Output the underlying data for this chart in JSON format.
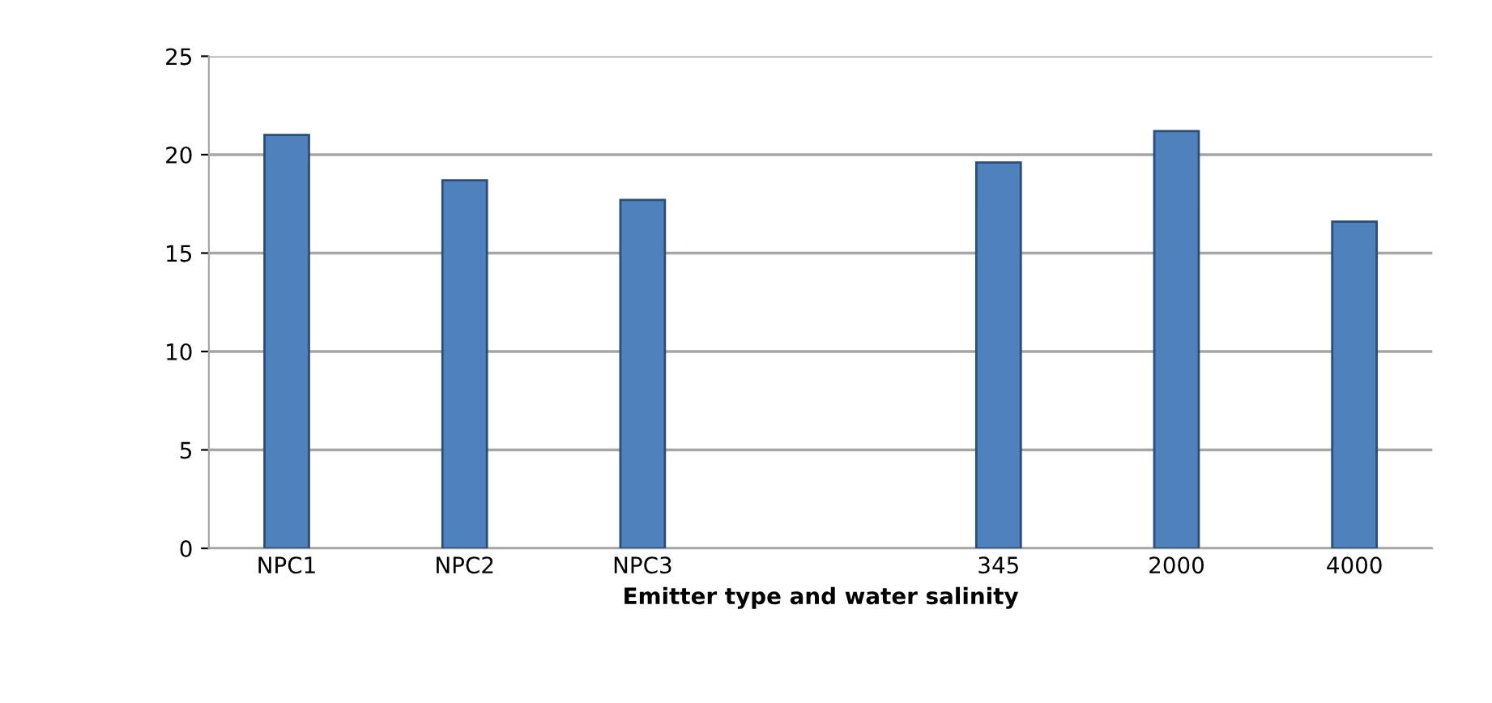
{
  "chart_data": {
    "type": "bar",
    "xlabel": "Emitter type and water salinity",
    "categories": [
      "NPC1",
      "NPC2",
      "NPC3",
      null,
      "345",
      "2000",
      "4000"
    ],
    "values": [
      21.0,
      18.7,
      17.7,
      null,
      19.6,
      21.2,
      16.6
    ],
    "color": "#4f81bd",
    "ylim": [
      0,
      25
    ],
    "yticks": [
      0,
      5,
      10,
      15,
      20,
      25
    ],
    "grid": "y"
  }
}
